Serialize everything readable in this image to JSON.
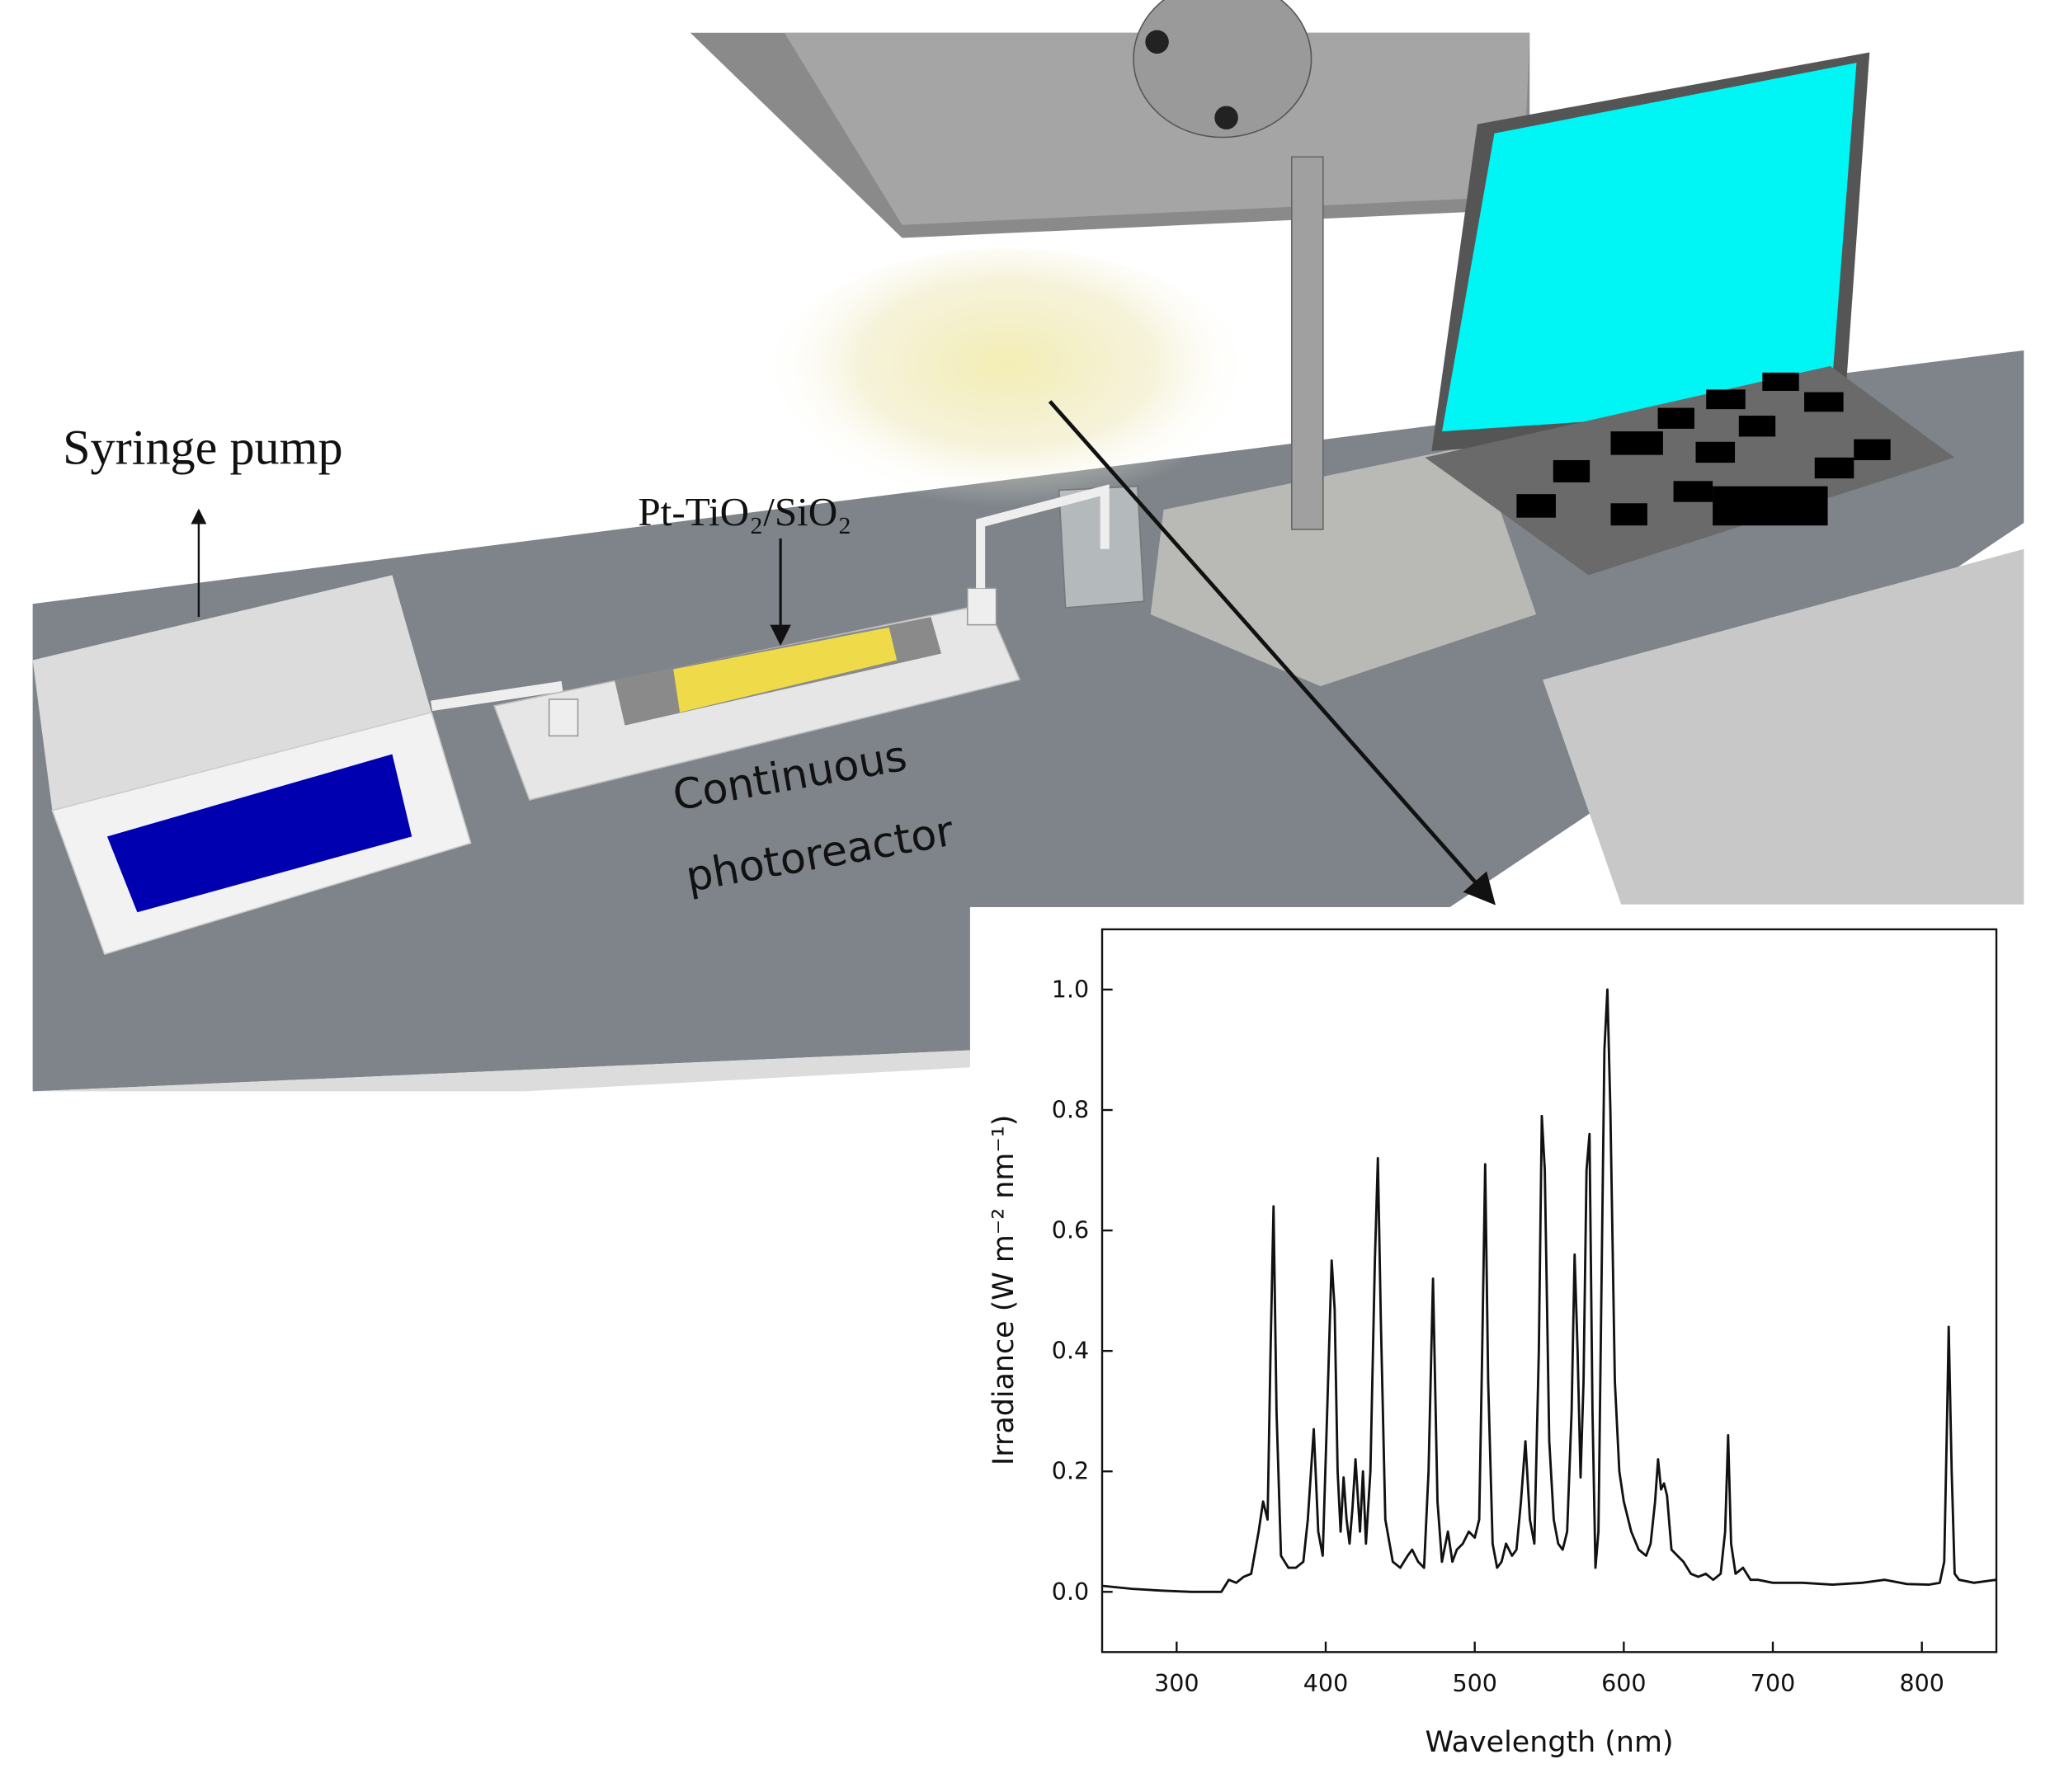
{
  "illustration": {
    "labels": {
      "pump": "Syringe pump",
      "catalyst": "Pt-TiO₂/SiO₂",
      "reactor_line1": "Continuous",
      "reactor_line2": "photoreactor"
    }
  },
  "chart_data": {
    "type": "line",
    "xlabel": "Wavelength (nm)",
    "ylabel": "Irradiance (W m⁻² nm⁻¹)",
    "color": "#111111",
    "xlim": [
      250,
      850
    ],
    "ylim": [
      -0.1,
      1.1
    ],
    "xticks": [
      300,
      400,
      500,
      600,
      700,
      800
    ],
    "yticks": [
      {
        "value": 0,
        "label": "0.0"
      },
      0.2,
      0.4,
      0.6,
      0.8,
      {
        "value": 1,
        "label": "1.0"
      }
    ],
    "x": [
      250,
      270,
      290,
      310,
      330,
      335,
      340,
      345,
      350,
      355,
      358,
      361,
      363,
      365,
      367,
      370,
      375,
      380,
      385,
      388,
      392,
      395,
      398,
      401,
      404,
      406,
      408,
      410,
      412,
      414,
      416,
      418,
      420,
      423,
      425,
      427,
      430,
      433,
      435,
      437,
      440,
      445,
      450,
      455,
      458,
      462,
      466,
      469,
      472,
      475,
      478,
      482,
      485,
      488,
      492,
      496,
      500,
      503,
      505,
      507,
      509,
      512,
      515,
      518,
      521,
      525,
      528,
      531,
      534,
      537,
      540,
      543,
      545,
      547,
      550,
      553,
      556,
      559,
      562,
      565,
      567,
      569,
      571,
      573,
      575,
      577,
      579,
      581,
      583,
      585,
      587,
      589,
      591,
      594,
      597,
      600,
      605,
      610,
      615,
      618,
      621,
      623,
      625,
      627,
      629,
      632,
      636,
      640,
      645,
      650,
      655,
      660,
      665,
      668,
      670,
      672,
      675,
      680,
      685,
      690,
      700,
      720,
      740,
      760,
      775,
      790,
      805,
      812,
      815,
      817,
      818,
      820,
      822,
      825,
      835,
      850
    ],
    "values": [
      0.01,
      0.005,
      0.002,
      0.0,
      0.0,
      0.02,
      0.015,
      0.025,
      0.03,
      0.1,
      0.15,
      0.12,
      0.4,
      0.64,
      0.3,
      0.06,
      0.04,
      0.04,
      0.05,
      0.12,
      0.27,
      0.1,
      0.06,
      0.3,
      0.55,
      0.47,
      0.2,
      0.1,
      0.19,
      0.12,
      0.08,
      0.14,
      0.22,
      0.1,
      0.2,
      0.08,
      0.2,
      0.55,
      0.72,
      0.45,
      0.12,
      0.05,
      0.04,
      0.06,
      0.07,
      0.05,
      0.04,
      0.2,
      0.52,
      0.15,
      0.05,
      0.1,
      0.05,
      0.07,
      0.08,
      0.1,
      0.09,
      0.12,
      0.4,
      0.71,
      0.35,
      0.08,
      0.04,
      0.05,
      0.08,
      0.06,
      0.07,
      0.15,
      0.25,
      0.12,
      0.08,
      0.4,
      0.79,
      0.7,
      0.25,
      0.12,
      0.08,
      0.07,
      0.1,
      0.3,
      0.56,
      0.4,
      0.19,
      0.35,
      0.7,
      0.76,
      0.3,
      0.04,
      0.1,
      0.5,
      0.9,
      1.0,
      0.8,
      0.35,
      0.2,
      0.15,
      0.1,
      0.07,
      0.06,
      0.08,
      0.15,
      0.22,
      0.17,
      0.18,
      0.16,
      0.07,
      0.06,
      0.05,
      0.03,
      0.025,
      0.03,
      0.02,
      0.03,
      0.1,
      0.26,
      0.08,
      0.03,
      0.04,
      0.02,
      0.02,
      0.015,
      0.015,
      0.012,
      0.015,
      0.02,
      0.013,
      0.012,
      0.015,
      0.05,
      0.3,
      0.44,
      0.2,
      0.03,
      0.02,
      0.015,
      0.02
    ]
  }
}
